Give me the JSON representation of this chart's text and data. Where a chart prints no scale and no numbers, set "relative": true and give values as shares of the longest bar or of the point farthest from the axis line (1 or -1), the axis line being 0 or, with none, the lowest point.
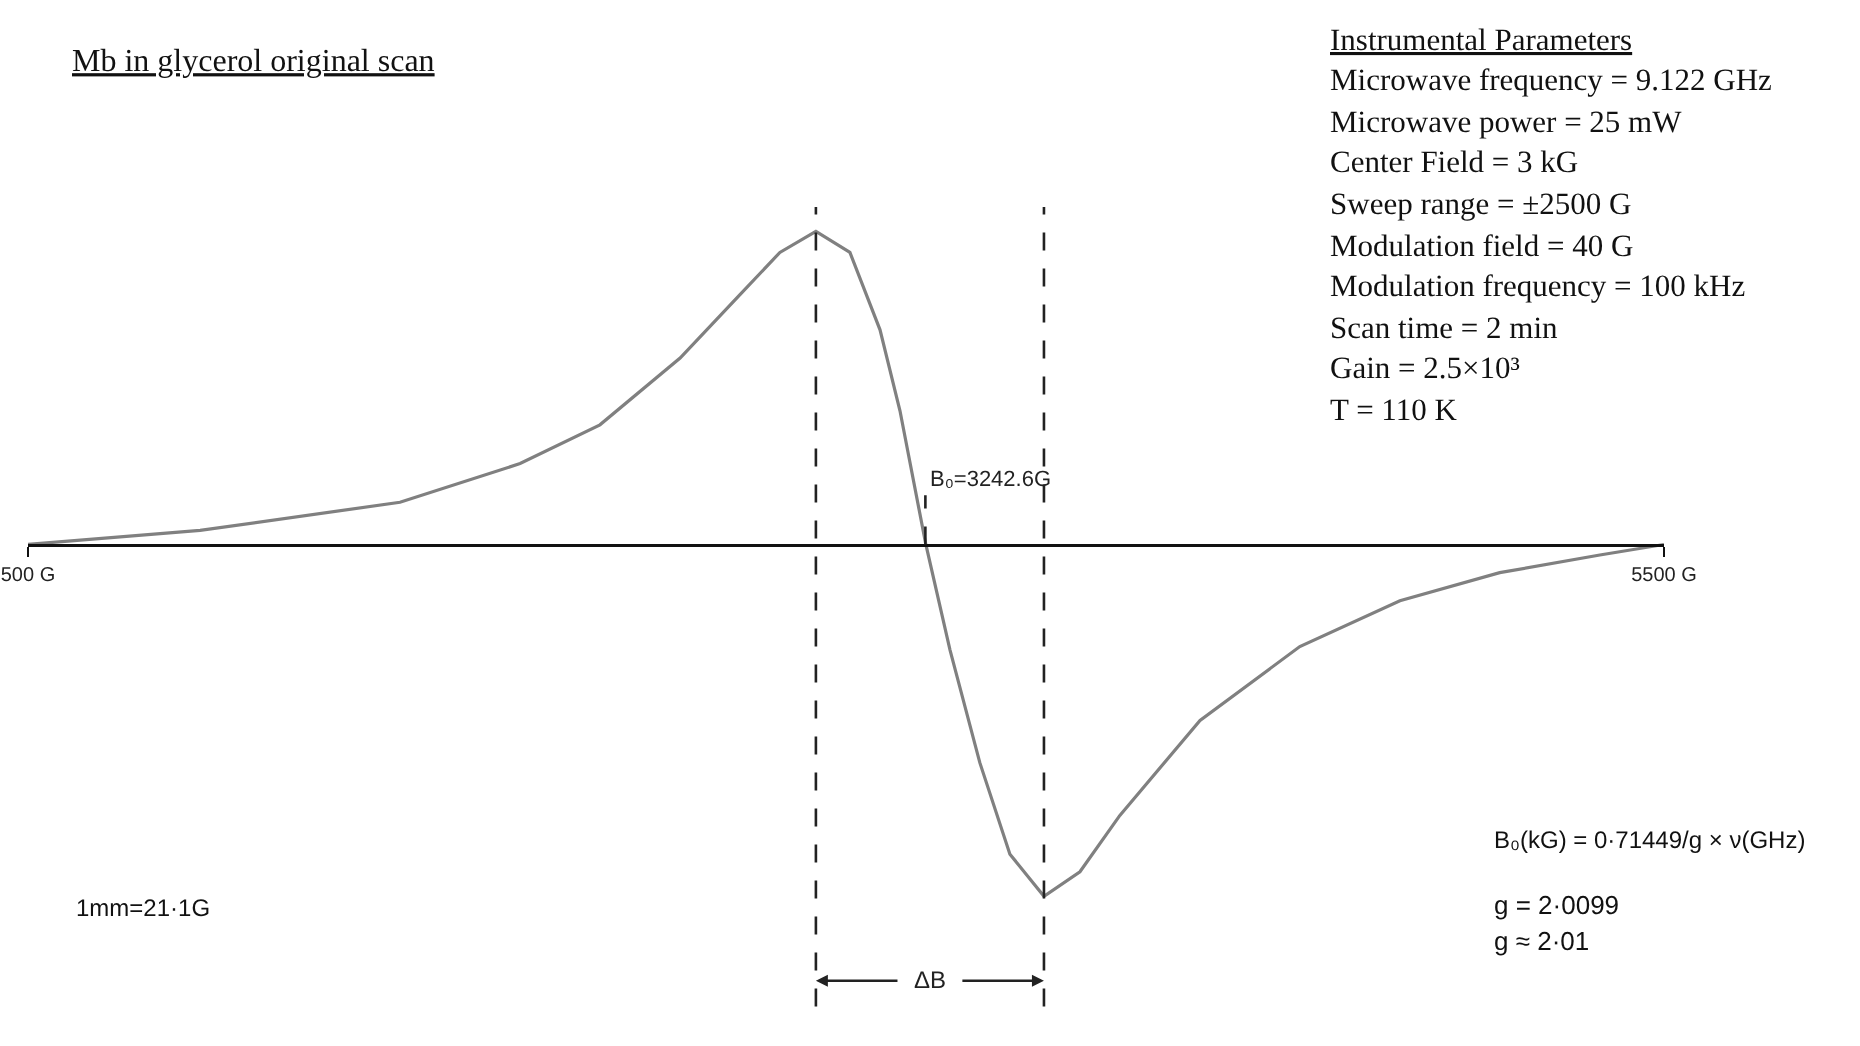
{
  "chart_data": {
    "type": "line",
    "title": "Mb in glycerol original scan",
    "relative": true,
    "x": [
      500,
      1026,
      1637,
      2004,
      2248,
      2493,
      2676,
      2798,
      2908,
      3012,
      3104,
      3165,
      3244,
      3318,
      3409,
      3501,
      3605,
      3715,
      3837,
      4082,
      4387,
      4693,
      4998,
      5304,
      5500
    ],
    "series": [
      {
        "color": "#808080",
        "values": [
          0,
          0.04,
          0.12,
          0.23,
          0.34,
          0.53,
          0.71,
          0.83,
          0.89,
          0.83,
          0.61,
          0.38,
          0,
          -0.3,
          -0.62,
          -0.88,
          -1,
          -0.93,
          -0.77,
          -0.5,
          -0.29,
          -0.16,
          -0.08,
          -0.03,
          0
        ]
      }
    ],
    "xlim": [
      500,
      5500
    ],
    "xticks": [
      {
        "value": 500,
        "label": "500 G"
      },
      {
        "value": 5500,
        "label": "5500 G"
      }
    ],
    "marker": "none",
    "line_style": "solid",
    "ref_lines": [
      {
        "axis": "x",
        "value": 2908,
        "line_style": "dashed"
      },
      {
        "axis": "x",
        "value": 3605,
        "line_style": "dashed"
      },
      {
        "axis": "x",
        "value": 3242.6,
        "label": "B₀=3242.6G",
        "line_style": "dashed"
      }
    ],
    "annotations": [
      "Instrumental Parameters",
      "Microwave frequency = 9.122 GHz",
      "Microwave power = 25 mW",
      "Center Field = 3 kG",
      "Sweep range = ±2500 G",
      "Modulation field = 40 G",
      "Modulation frequency = 100 kHz",
      "Scan time = 2 min",
      "Gain = 2.5×10³",
      "T = 110 K",
      "1mm=21·1G",
      "B₀(kG) = 0·71449/g × ν(GHz)",
      "g = 2·0099",
      "g ≈ 2·01",
      "ΔB"
    ]
  }
}
